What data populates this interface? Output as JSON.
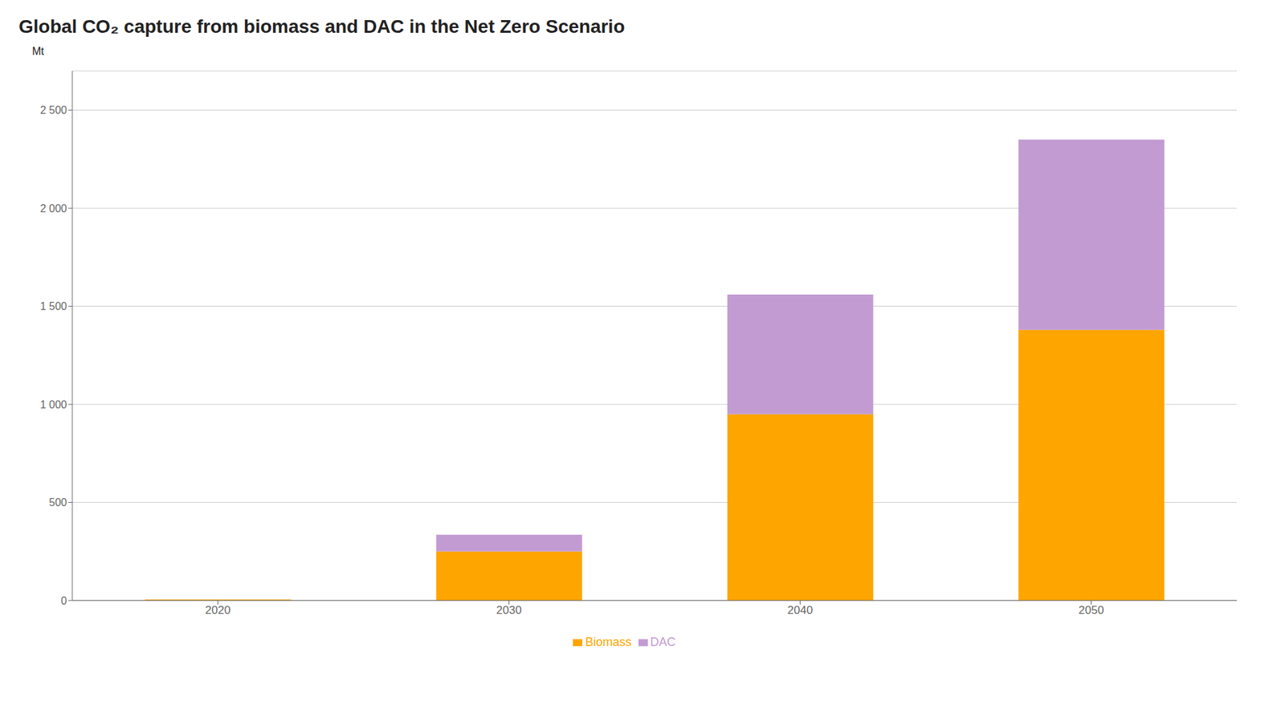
{
  "chart_data": {
    "type": "bar",
    "title": "Global CO₂ capture from biomass and DAC in the Net Zero Scenario",
    "ylabel": "Mt",
    "categories": [
      "2020",
      "2030",
      "2040",
      "2050"
    ],
    "series": [
      {
        "name": "Biomass",
        "color": "#FFA500",
        "values": [
          5,
          250,
          950,
          1380
        ]
      },
      {
        "name": "DAC",
        "color": "#C39BD3",
        "values": [
          0,
          85,
          610,
          970
        ]
      }
    ],
    "stacked": true,
    "ylim": [
      0,
      2700
    ],
    "yticks": [
      0,
      500,
      {
        "value": 1000,
        "label": "1 000"
      },
      {
        "value": 1500,
        "label": "1 500"
      },
      {
        "value": 2000,
        "label": "2 000"
      },
      {
        "value": 2500,
        "label": "2 500"
      }
    ],
    "grid": true,
    "legend": "bottom"
  }
}
